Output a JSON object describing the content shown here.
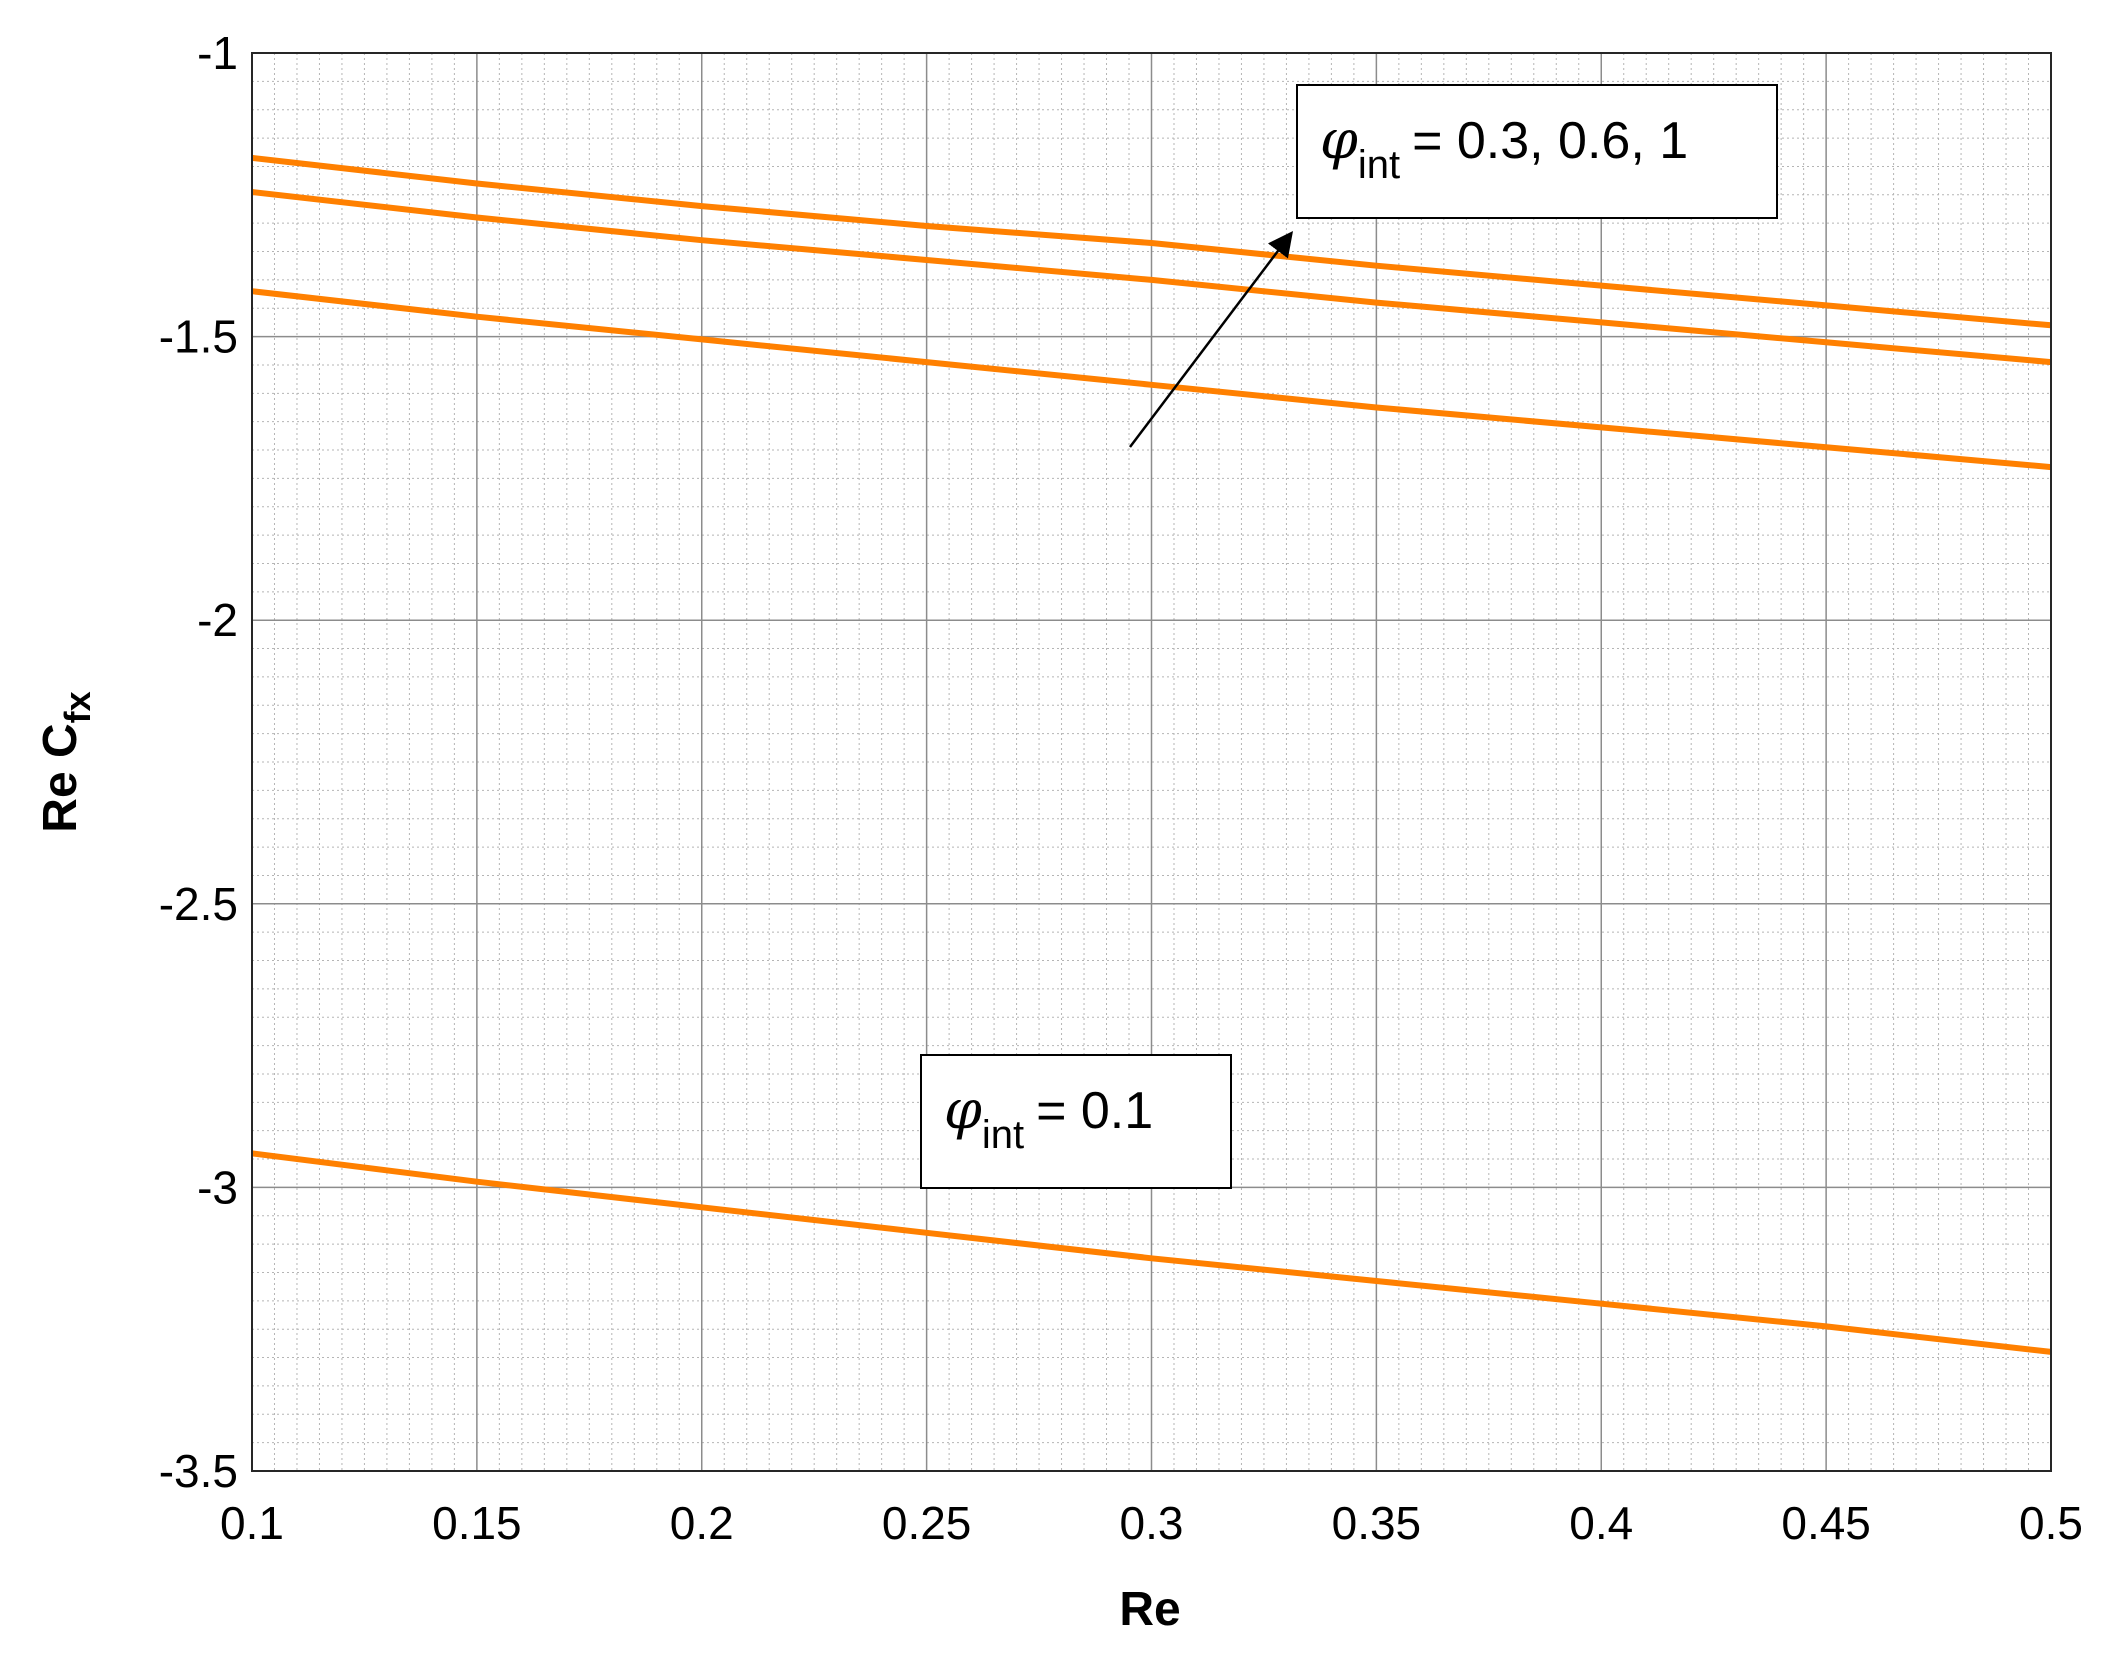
{
  "chart_data": {
    "type": "line",
    "title": "",
    "xlabel": "Re",
    "ylabel_main": "Re C",
    "ylabel_sub": "fx",
    "xlim": [
      0.1,
      0.5
    ],
    "ylim": [
      -3.5,
      -1
    ],
    "xticks": [
      0.1,
      0.15,
      0.2,
      0.25,
      0.3,
      0.35,
      0.4,
      0.45,
      0.5
    ],
    "xtick_labels": [
      "0.1",
      "0.15",
      "0.2",
      "0.25",
      "0.3",
      "0.35",
      "0.4",
      "0.45",
      "0.5"
    ],
    "yticks": [
      -1,
      -1.5,
      -2,
      -2.5,
      -3,
      -3.5
    ],
    "ytick_labels": [
      "-1",
      "-1.5",
      "-2",
      "-2.5",
      "-3",
      "-3.5"
    ],
    "grid": true,
    "minor_grid": true,
    "line_color": "#ff8000",
    "x": [
      0.1,
      0.15,
      0.2,
      0.25,
      0.3,
      0.35,
      0.4,
      0.45,
      0.5
    ],
    "series": [
      {
        "values": [
          -1.185,
          -1.23,
          -1.27,
          -1.305,
          -1.335,
          -1.375,
          -1.41,
          -1.445,
          -1.48
        ]
      },
      {
        "values": [
          -1.245,
          -1.29,
          -1.33,
          -1.365,
          -1.4,
          -1.44,
          -1.475,
          -1.51,
          -1.545
        ]
      },
      {
        "values": [
          -1.42,
          -1.465,
          -1.505,
          -1.545,
          -1.585,
          -1.625,
          -1.66,
          -1.695,
          -1.73
        ]
      },
      {
        "values": [
          -2.94,
          -2.99,
          -3.035,
          -3.08,
          -3.125,
          -3.165,
          -3.205,
          -3.245,
          -3.29
        ]
      }
    ],
    "annotations": [
      {
        "symbol": "φ",
        "subscript": "int",
        "text": "= 0.3, 0.6, 1",
        "arrow": true
      },
      {
        "symbol": "φ",
        "subscript": "int",
        "text": "= 0.1",
        "arrow": false
      }
    ]
  }
}
